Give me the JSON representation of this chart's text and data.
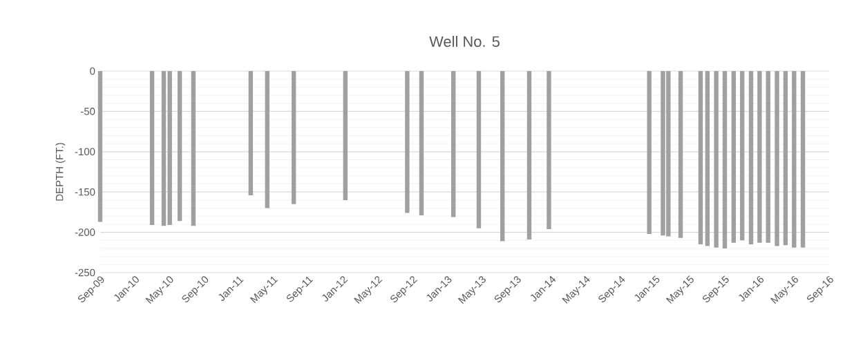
{
  "chart_data": {
    "type": "bar",
    "title": "Well No. 5",
    "ylabel": "DEPTH (FT.)",
    "x": [
      "2009-09-01",
      "2010-03-02",
      "2010-04-12",
      "2010-05-03",
      "2010-06-07",
      "2010-07-25",
      "2011-02-11",
      "2011-04-10",
      "2011-07-12",
      "2012-01-09",
      "2012-08-13",
      "2012-10-02",
      "2013-01-22",
      "2013-04-21",
      "2013-07-13",
      "2013-10-15",
      "2013-12-23",
      "2014-12-10",
      "2015-01-27",
      "2015-02-15",
      "2015-03-30",
      "2015-06-08",
      "2015-07-02",
      "2015-08-02",
      "2015-09-01",
      "2015-10-02",
      "2015-11-01",
      "2015-12-02",
      "2016-01-01",
      "2016-01-31",
      "2016-03-02",
      "2016-04-01",
      "2016-05-01",
      "2016-06-01"
    ],
    "series": [
      {
        "color": "#a0a0a0",
        "values": [
          -187,
          -191,
          -192,
          -191,
          -186,
          -192,
          -154,
          -170,
          -165,
          -160,
          -176,
          -179,
          -181,
          -195,
          -211,
          -209,
          -196,
          -202,
          -204,
          -205,
          -207,
          -215,
          -217,
          -219,
          -220,
          -213,
          -210,
          -215,
          -213,
          -213,
          -217,
          -216,
          -219,
          -219
        ]
      }
    ],
    "xlim": [
      "2009-09-01",
      "2016-09-01"
    ],
    "xticks": [
      {
        "value": "2009-09-01",
        "label": "Sep-09"
      },
      {
        "value": "2010-01-01",
        "label": "Jan-10"
      },
      {
        "value": "2010-05-01",
        "label": "May-10"
      },
      {
        "value": "2010-09-01",
        "label": "Sep-10"
      },
      {
        "value": "2011-01-01",
        "label": "Jan-11"
      },
      {
        "value": "2011-05-01",
        "label": "May-11"
      },
      {
        "value": "2011-09-01",
        "label": "Sep-11"
      },
      {
        "value": "2012-01-01",
        "label": "Jan-12"
      },
      {
        "value": "2012-05-01",
        "label": "May-12"
      },
      {
        "value": "2012-09-01",
        "label": "Sep-12"
      },
      {
        "value": "2013-01-01",
        "label": "Jan-13"
      },
      {
        "value": "2013-05-01",
        "label": "May-13"
      },
      {
        "value": "2013-09-01",
        "label": "Sep-13"
      },
      {
        "value": "2014-01-01",
        "label": "Jan-14"
      },
      {
        "value": "2014-05-01",
        "label": "May-14"
      },
      {
        "value": "2014-09-01",
        "label": "Sep-14"
      },
      {
        "value": "2015-01-01",
        "label": "Jan-15"
      },
      {
        "value": "2015-05-01",
        "label": "May-15"
      },
      {
        "value": "2015-09-01",
        "label": "Sep-15"
      },
      {
        "value": "2016-01-01",
        "label": "Jan-16"
      },
      {
        "value": "2016-05-01",
        "label": "May-16"
      },
      {
        "value": "2016-09-01",
        "label": "Sep-16"
      }
    ],
    "ylim": [
      -250,
      0
    ],
    "yticks": [
      -250,
      -200,
      -150,
      -100,
      -50,
      0
    ],
    "grid": "y"
  }
}
